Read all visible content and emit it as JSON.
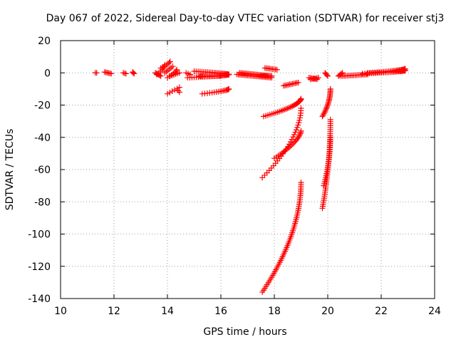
{
  "chart_data": {
    "type": "scatter",
    "title": "Day 067 of 2022, Sidereal Day-to-day VTEC variation (SDTVAR) for receiver stj3",
    "xlabel": "GPS time / hours",
    "ylabel": "SDTVAR / TECUs",
    "xlim": [
      10,
      24
    ],
    "ylim": [
      -140,
      20
    ],
    "xticks": [
      10,
      12,
      14,
      16,
      18,
      20,
      22,
      24
    ],
    "yticks": [
      20,
      0,
      -20,
      -40,
      -60,
      -80,
      -100,
      -120,
      -140
    ],
    "grid": true,
    "marker": "plus",
    "color": "#ff0000",
    "segments": [
      {
        "x": [
          11.3,
          11.35
        ],
        "y": [
          0,
          0
        ]
      },
      {
        "x": [
          11.65,
          11.9
        ],
        "y": [
          0.5,
          -0.5
        ]
      },
      {
        "x": [
          12.35,
          12.45
        ],
        "y": [
          0,
          -0.5
        ]
      },
      {
        "x": [
          12.7,
          12.75
        ],
        "y": [
          0.5,
          -0.5
        ]
      },
      {
        "x": [
          13.55,
          13.75
        ],
        "y": [
          0,
          -2
        ]
      },
      {
        "x": [
          13.6,
          13.9
        ],
        "y": [
          -1,
          5
        ]
      },
      {
        "x": [
          13.75,
          14.1
        ],
        "y": [
          3,
          7
        ]
      },
      {
        "x": [
          13.9,
          14.2
        ],
        "y": [
          0,
          4
        ]
      },
      {
        "x": [
          14.0,
          14.35
        ],
        "y": [
          -3,
          2
        ]
      },
      {
        "x": [
          14.1,
          14.45
        ],
        "y": [
          -2,
          0
        ]
      },
      {
        "x": [
          14.0,
          14.45
        ],
        "y": [
          -13,
          -9
        ]
      },
      {
        "x": [
          14.4,
          14.45
        ],
        "y": [
          -11,
          -12
        ]
      },
      {
        "x": [
          14.7,
          14.85
        ],
        "y": [
          0,
          -1
        ]
      },
      {
        "x": [
          14.75,
          16.3
        ],
        "y": [
          -3,
          -1
        ]
      },
      {
        "x": [
          15.0,
          16.3
        ],
        "y": [
          1,
          -1
        ]
      },
      {
        "x": [
          15.2,
          16.0
        ],
        "y": [
          -2,
          -2
        ]
      },
      {
        "x": [
          15.3,
          16.3
        ],
        "y": [
          -13,
          -10
        ]
      },
      {
        "x": [
          16.7,
          17.9
        ],
        "y": [
          0,
          -2
        ]
      },
      {
        "x": [
          16.6,
          17.9
        ],
        "y": [
          -1,
          -3
        ]
      },
      {
        "x": [
          17.5,
          17.9
        ],
        "y": [
          -2,
          -2
        ]
      },
      {
        "x": [
          17.65,
          18.1
        ],
        "y": [
          3,
          2
        ]
      },
      {
        "x": [
          18.35,
          18.9
        ],
        "y": [
          -8,
          -6
        ]
      },
      {
        "x": [
          19.3,
          19.6
        ],
        "y": [
          -3,
          -4
        ]
      },
      {
        "x": [
          19.35,
          19.65
        ],
        "y": [
          -4,
          -3
        ]
      },
      {
        "x": [
          19.9,
          20.0
        ],
        "y": [
          0,
          -2
        ]
      },
      {
        "x": [
          20.4,
          20.55
        ],
        "y": [
          -2,
          0
        ]
      },
      {
        "x": [
          20.5,
          21.5
        ],
        "y": [
          -2,
          -1
        ]
      },
      {
        "x": [
          21.3,
          22.9
        ],
        "y": [
          -0.5,
          1.5
        ]
      },
      {
        "x": [
          21.5,
          22.9
        ],
        "y": [
          0,
          2.5
        ]
      },
      {
        "x": [
          17.6,
          19.0
        ],
        "y": [
          -27,
          -16
        ]
      },
      {
        "x": [
          17.55,
          19.0
        ],
        "y": [
          -65,
          -22
        ]
      },
      {
        "x": [
          18.0,
          19.0
        ],
        "y": [
          -53,
          -36
        ]
      },
      {
        "x": [
          17.55,
          19.0
        ],
        "y": [
          -136,
          -68
        ]
      },
      {
        "x": [
          19.8,
          20.1
        ],
        "y": [
          -27,
          -10
        ]
      },
      {
        "x": [
          19.8,
          20.1
        ],
        "y": [
          -84,
          -29
        ]
      },
      {
        "x": [
          19.85,
          20.1
        ],
        "y": [
          -70,
          -40
        ]
      }
    ],
    "curvature": [
      0,
      0,
      0,
      0,
      0,
      0.3,
      0.2,
      0,
      0.2,
      0,
      0,
      0,
      0,
      0.3,
      0.2,
      0,
      0.3,
      0,
      0,
      0,
      0,
      0,
      0,
      0,
      0,
      0,
      0,
      0.3,
      0.3,
      0.35,
      0.4,
      0.3,
      0.45,
      0.5,
      0.5,
      0.45
    ],
    "point_counts": [
      2,
      6,
      3,
      3,
      6,
      7,
      7,
      6,
      7,
      6,
      6,
      2,
      3,
      30,
      25,
      14,
      17,
      24,
      24,
      8,
      9,
      11,
      7,
      6,
      4,
      5,
      18,
      30,
      26,
      30,
      30,
      22,
      60,
      22,
      45,
      25
    ]
  }
}
